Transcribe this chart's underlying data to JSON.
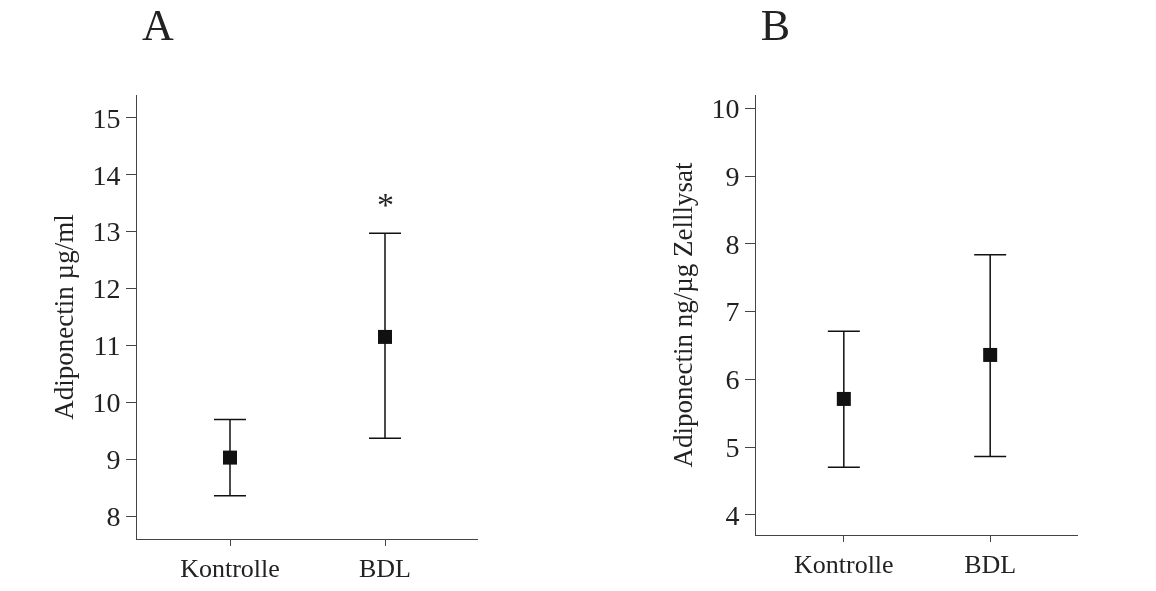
{
  "chart_data": [
    {
      "type": "scatter",
      "title": "A",
      "ylabel": "Adiponectin µg/ml",
      "categories": [
        "Kontrolle",
        "BDL"
      ],
      "values": [
        9.03,
        11.15
      ],
      "errors": [
        [
          8.36,
          9.7
        ],
        [
          9.37,
          12.97
        ]
      ],
      "color": "#111111",
      "marker": "square",
      "ylim": [
        7.6,
        15.4
      ],
      "yticks": [
        8,
        9,
        10,
        11,
        12,
        13,
        14,
        15
      ],
      "grid": false,
      "annotations": [
        {
          "text": "*",
          "x": "BDL",
          "y": 12.97
        }
      ]
    },
    {
      "type": "scatter",
      "title": "B",
      "ylabel": "Adiponectin ng/µg Zelllysat",
      "categories": [
        "Kontrolle",
        "BDL"
      ],
      "values": [
        5.71,
        6.36
      ],
      "errors": [
        [
          4.7,
          6.71
        ],
        [
          4.86,
          7.84
        ]
      ],
      "color": "#111111",
      "marker": "square",
      "ylim": [
        3.7,
        10.2
      ],
      "yticks": [
        4,
        5,
        6,
        7,
        8,
        9,
        10
      ],
      "grid": false
    }
  ]
}
